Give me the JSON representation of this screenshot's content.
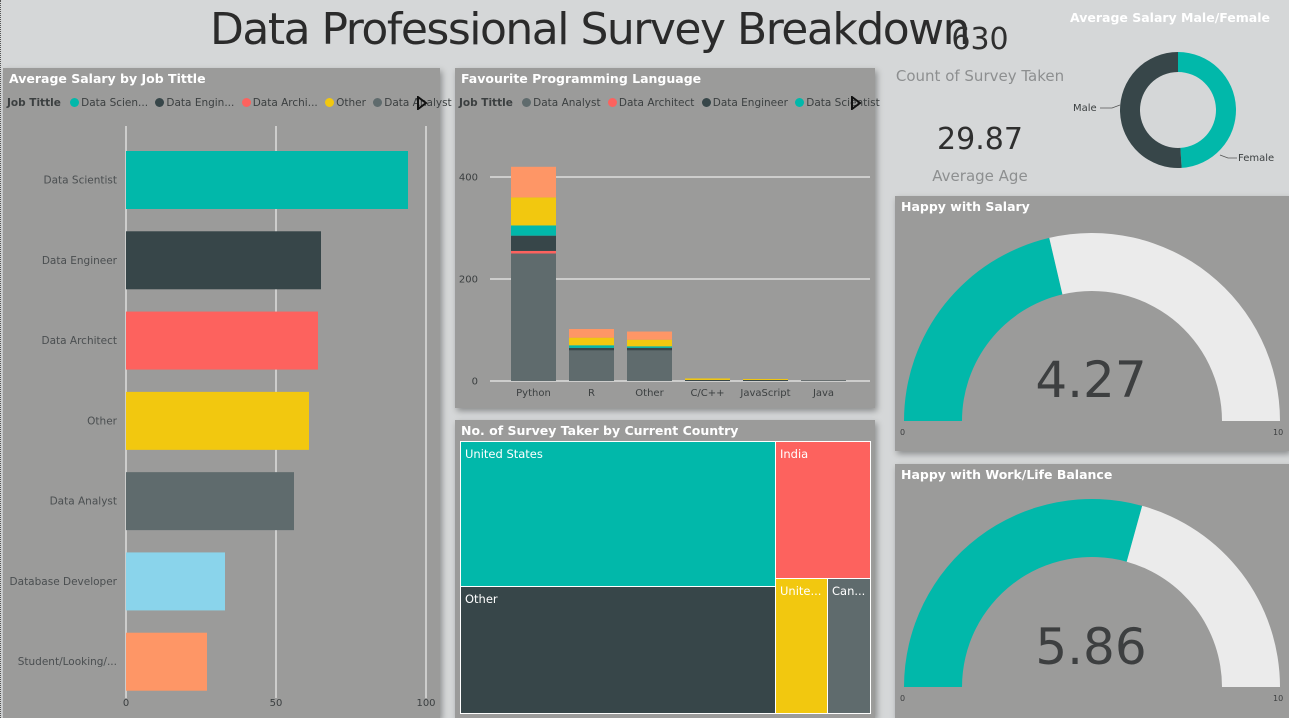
{
  "title": "Data Professional Survey Breakdown",
  "colors": {
    "teal": "#01b8aa",
    "dark": "#374649",
    "red": "#fd625e",
    "yellow": "#f2c80f",
    "gray": "#5f6b6d",
    "lightblue": "#8ad4eb",
    "orange": "#fe9666",
    "light": "#ebebeb"
  },
  "cards": {
    "count_value": "630",
    "count_label": "Count of Survey Taken",
    "age_value": "29.87",
    "age_label": "Average Age"
  },
  "salary_chart": {
    "title": "Average Salary by Job Tittle",
    "legend_title": "Job Tittle",
    "legend": [
      {
        "label": "Data Scien...",
        "color": "#01b8aa"
      },
      {
        "label": "Data Engin...",
        "color": "#374649"
      },
      {
        "label": "Data Archi...",
        "color": "#fd625e"
      },
      {
        "label": "Other",
        "color": "#f2c80f"
      },
      {
        "label": "Data Analyst",
        "color": "#5f6b6d"
      }
    ]
  },
  "language_chart": {
    "title": "Favourite Programming Language",
    "legend_title": "Job Tittle",
    "legend": [
      {
        "label": "Data Analyst",
        "color": "#5f6b6d"
      },
      {
        "label": "Data Architect",
        "color": "#fd625e"
      },
      {
        "label": "Data Engineer",
        "color": "#374649"
      },
      {
        "label": "Data Scientist",
        "color": "#01b8aa"
      }
    ]
  },
  "country_chart": {
    "title": "No. of Survey Taker by Current Country"
  },
  "gender_chart": {
    "title": "Average Salary Male/Female"
  },
  "gauge_salary": {
    "title": "Happy with Salary",
    "value": 4.27,
    "value_label": "4.27",
    "min": "0",
    "max": "10"
  },
  "gauge_worklife": {
    "title": "Happy with Work/Life Balance",
    "value": 5.86,
    "value_label": "5.86",
    "min": "0",
    "max": "10"
  },
  "chart_data": [
    {
      "type": "bar",
      "orientation": "horizontal",
      "title": "Average Salary by Job Tittle",
      "categories": [
        "Data Scientist",
        "Data Engineer",
        "Data Architect",
        "Other",
        "Data Analyst",
        "Database Developer",
        "Student/Looking/..."
      ],
      "values": [
        94,
        65,
        64,
        61,
        56,
        33,
        27
      ],
      "colors": [
        "#01b8aa",
        "#374649",
        "#fd625e",
        "#f2c80f",
        "#5f6b6d",
        "#8ad4eb",
        "#fe9666"
      ],
      "xticks": [
        "0",
        "50",
        "100"
      ],
      "xlim": [
        0,
        100
      ],
      "grid": true
    },
    {
      "type": "bar",
      "stacked": true,
      "title": "Favourite Programming Language",
      "categories": [
        "Python",
        "R",
        "Other",
        "C/C++",
        "JavaScript",
        "Java"
      ],
      "segment_colors": [
        "#5f6b6d",
        "#fd625e",
        "#374649",
        "#01b8aa",
        "#f2c80f",
        "#fe9666"
      ],
      "segments": [
        [
          250,
          5,
          30,
          20,
          55,
          60
        ],
        [
          60,
          0,
          5,
          5,
          15,
          17
        ],
        [
          60,
          0,
          5,
          3,
          13,
          16
        ],
        [
          0,
          0,
          2,
          0,
          3,
          0
        ],
        [
          0,
          0,
          2,
          0,
          2,
          0
        ],
        [
          0,
          0,
          1,
          0,
          0,
          0
        ]
      ],
      "yticks": [
        "0",
        "200",
        "400"
      ],
      "ylim": [
        0,
        400
      ],
      "grid": true
    },
    {
      "type": "treemap",
      "title": "No. of Survey Taker by Current Country",
      "items": [
        {
          "label": "United States",
          "color": "#01b8aa"
        },
        {
          "label": "India",
          "color": "#fd625e"
        },
        {
          "label": "Other",
          "color": "#374649"
        },
        {
          "label": "Unite...",
          "color": "#f2c80f"
        },
        {
          "label": "Can...",
          "color": "#5f6b6d"
        }
      ]
    },
    {
      "type": "pie",
      "donut": true,
      "title": "Average Salary Male/Female",
      "labels": [
        "Female",
        "Male"
      ],
      "values": [
        49,
        51
      ],
      "colors": [
        "#01b8aa",
        "#374649"
      ]
    }
  ]
}
